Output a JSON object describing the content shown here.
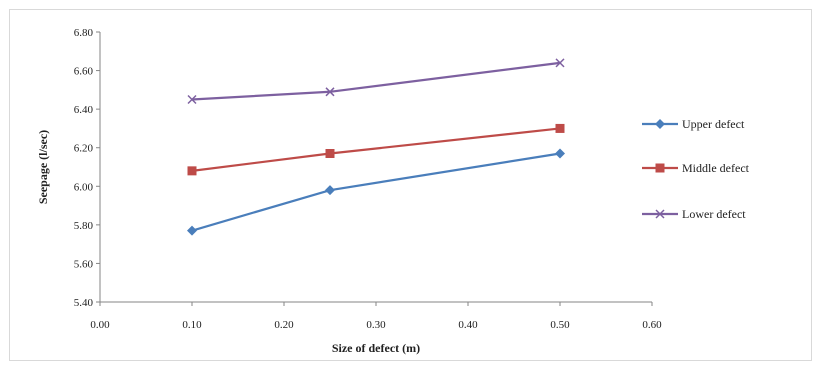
{
  "chart_data": {
    "type": "line",
    "title": "",
    "xlabel": "Size of defect (m)",
    "ylabel": "Seepage (l/sec)",
    "xlim": [
      0.0,
      0.6
    ],
    "ylim": [
      5.4,
      6.8
    ],
    "x_ticks": [
      "0.00",
      "0.10",
      "0.20",
      "0.30",
      "0.40",
      "0.50",
      "0.60"
    ],
    "y_ticks": [
      "5.40",
      "5.60",
      "5.80",
      "6.00",
      "6.20",
      "6.40",
      "6.60",
      "6.80"
    ],
    "grid": false,
    "legend_position": "right",
    "x": [
      0.1,
      0.25,
      0.5
    ],
    "series": [
      {
        "name": "Upper defect",
        "values": [
          5.77,
          5.98,
          6.17
        ],
        "color": "#4a7ebb",
        "marker": "diamond"
      },
      {
        "name": "Middle defect",
        "values": [
          6.08,
          6.17,
          6.3
        ],
        "color": "#be4b48",
        "marker": "square"
      },
      {
        "name": "Lower defect",
        "values": [
          6.45,
          6.49,
          6.64
        ],
        "color": "#7d60a0",
        "marker": "x"
      }
    ]
  }
}
